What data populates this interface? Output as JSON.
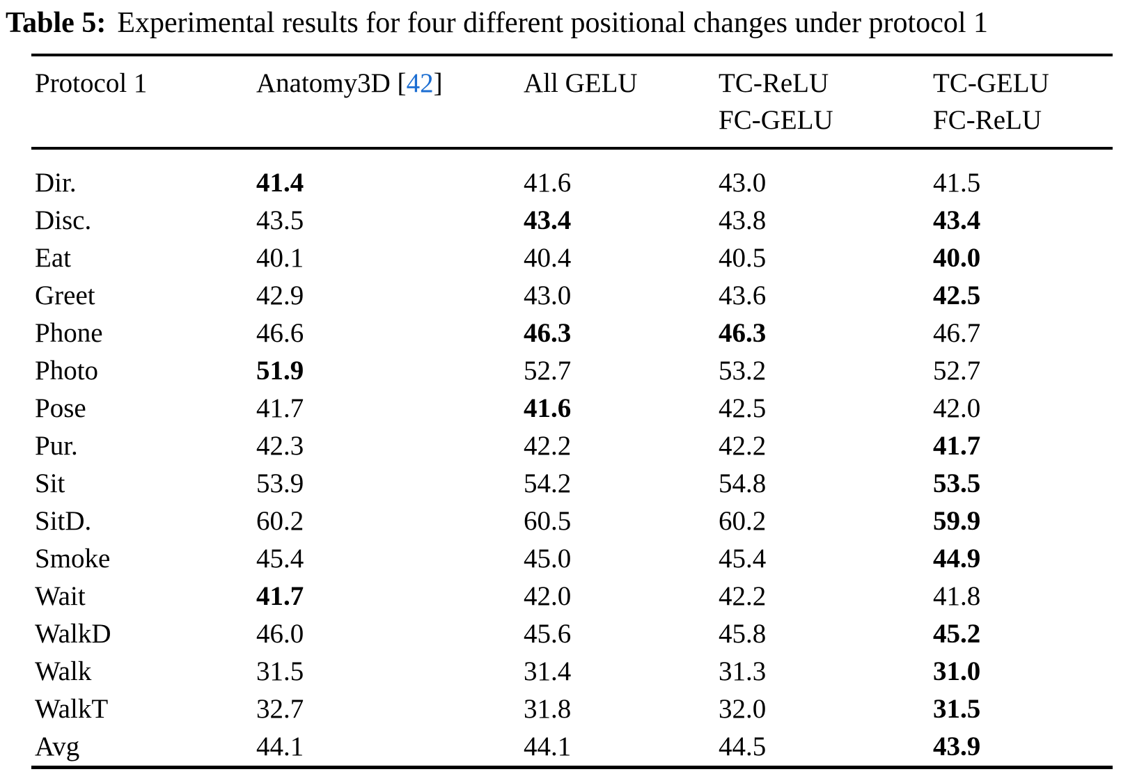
{
  "title": {
    "label": "Table 5:",
    "text": "Experimental results for four different positional changes under protocol 1"
  },
  "colors": {
    "background": "#FFFFFF",
    "text": "#000000",
    "citation_blue": "#1C6ED2"
  },
  "header": {
    "protocol": "Protocol 1",
    "anatomy_prefix": "Anatomy3D [",
    "anatomy_citation": "42",
    "anatomy_suffix": "]",
    "all_gelu": "All GELU",
    "tc_relu_line1": "TC-ReLU",
    "tc_relu_line2": "FC-GELU",
    "tc_gelu_line1": "TC-GELU",
    "tc_gelu_line2": "FC-ReLU"
  },
  "table": {
    "columns": [
      "Protocol 1",
      "Anatomy3D [42]",
      "All GELU",
      "TC-ReLU FC-GELU",
      "TC-GELU FC-ReLU"
    ],
    "rows": [
      {
        "label": "Dir.",
        "values": [
          "41.4",
          "41.6",
          "43.0",
          "41.5"
        ],
        "bold": [
          true,
          false,
          false,
          false
        ]
      },
      {
        "label": "Disc.",
        "values": [
          "43.5",
          "43.4",
          "43.8",
          "43.4"
        ],
        "bold": [
          false,
          true,
          false,
          true
        ]
      },
      {
        "label": "Eat",
        "values": [
          "40.1",
          "40.4",
          "40.5",
          "40.0"
        ],
        "bold": [
          false,
          false,
          false,
          true
        ]
      },
      {
        "label": "Greet",
        "values": [
          "42.9",
          "43.0",
          "43.6",
          "42.5"
        ],
        "bold": [
          false,
          false,
          false,
          true
        ]
      },
      {
        "label": "Phone",
        "values": [
          "46.6",
          "46.3",
          "46.3",
          "46.7"
        ],
        "bold": [
          false,
          true,
          true,
          false
        ]
      },
      {
        "label": "Photo",
        "values": [
          "51.9",
          "52.7",
          "53.2",
          "52.7"
        ],
        "bold": [
          true,
          false,
          false,
          false
        ]
      },
      {
        "label": "Pose",
        "values": [
          "41.7",
          "41.6",
          "42.5",
          "42.0"
        ],
        "bold": [
          false,
          true,
          false,
          false
        ]
      },
      {
        "label": "Pur.",
        "values": [
          "42.3",
          "42.2",
          "42.2",
          "41.7"
        ],
        "bold": [
          false,
          false,
          false,
          true
        ]
      },
      {
        "label": "Sit",
        "values": [
          "53.9",
          "54.2",
          "54.8",
          "53.5"
        ],
        "bold": [
          false,
          false,
          false,
          true
        ]
      },
      {
        "label": "SitD.",
        "values": [
          "60.2",
          "60.5",
          "60.2",
          "59.9"
        ],
        "bold": [
          false,
          false,
          false,
          true
        ]
      },
      {
        "label": "Smoke",
        "values": [
          "45.4",
          "45.0",
          "45.4",
          "44.9"
        ],
        "bold": [
          false,
          false,
          false,
          true
        ]
      },
      {
        "label": "Wait",
        "values": [
          "41.7",
          "42.0",
          "42.2",
          "41.8"
        ],
        "bold": [
          true,
          false,
          false,
          false
        ]
      },
      {
        "label": "WalkD",
        "values": [
          "46.0",
          "45.6",
          "45.8",
          "45.2"
        ],
        "bold": [
          false,
          false,
          false,
          true
        ]
      },
      {
        "label": "Walk",
        "values": [
          "31.5",
          "31.4",
          "31.3",
          "31.0"
        ],
        "bold": [
          false,
          false,
          false,
          true
        ]
      },
      {
        "label": "WalkT",
        "values": [
          "32.7",
          "31.8",
          "32.0",
          "31.5"
        ],
        "bold": [
          false,
          false,
          false,
          true
        ]
      },
      {
        "label": "Avg",
        "values": [
          "44.1",
          "44.1",
          "44.5",
          "43.9"
        ],
        "bold": [
          false,
          false,
          false,
          true
        ]
      }
    ]
  }
}
